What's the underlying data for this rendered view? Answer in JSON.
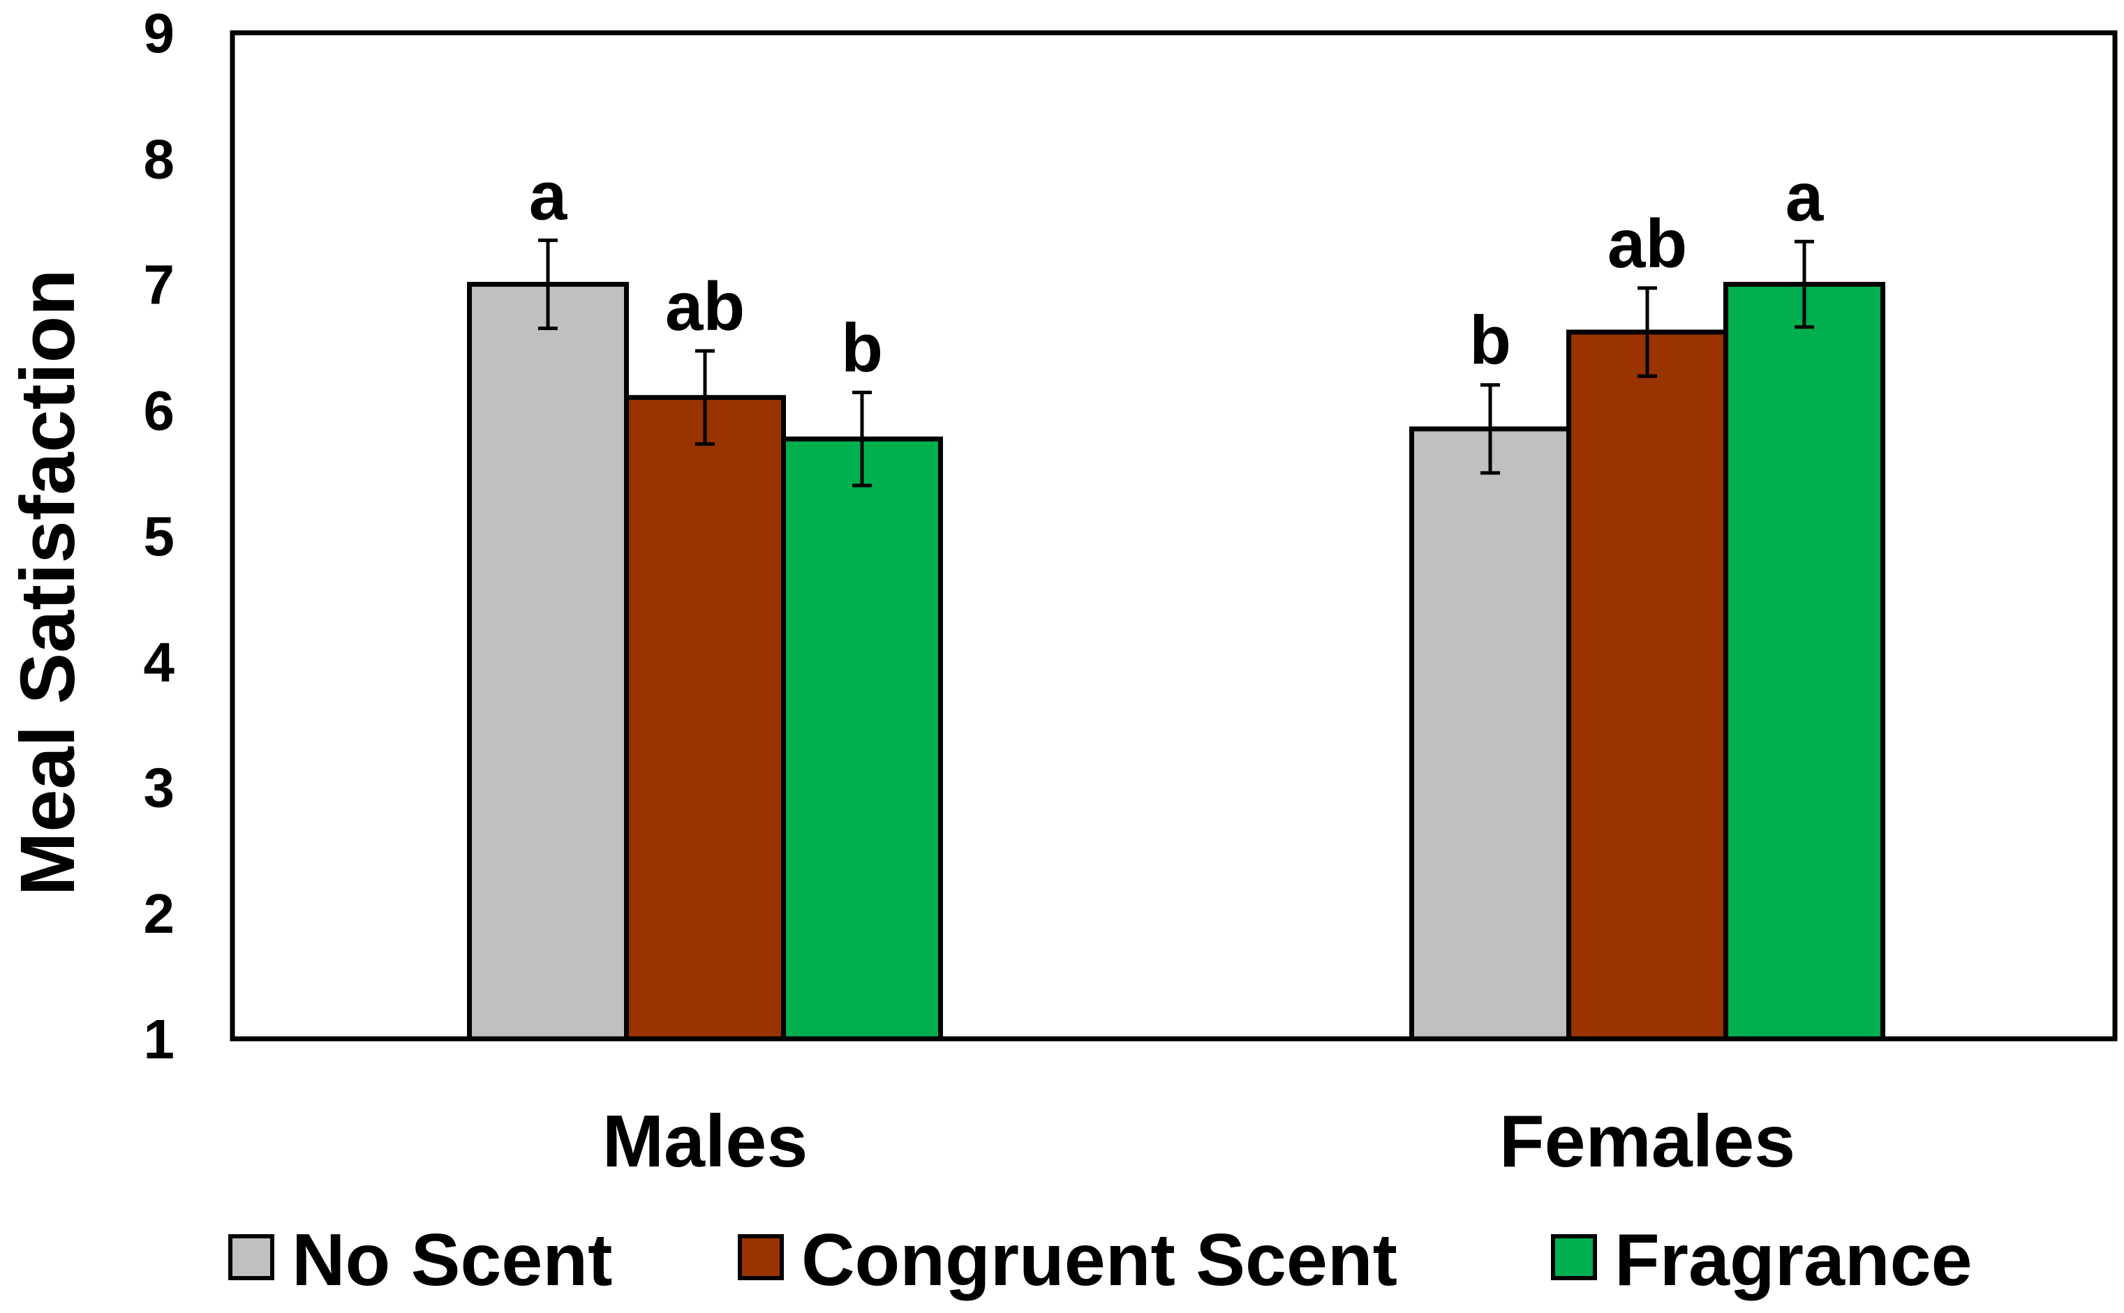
{
  "chart_data": {
    "type": "bar",
    "title": "",
    "ylabel": "Meal Satisfaction",
    "xlabel": "",
    "ylim": [
      1,
      9
    ],
    "yticks": [
      1,
      2,
      3,
      4,
      5,
      6,
      7,
      8,
      9
    ],
    "grid": false,
    "legend_position": "bottom",
    "categories": [
      "Males",
      "Females"
    ],
    "series": [
      {
        "name": "No Scent",
        "color": "#C0C0C0",
        "values": [
          7.0,
          5.85
        ],
        "errors": [
          0.35,
          0.35
        ],
        "labels": [
          "a",
          "b"
        ]
      },
      {
        "name": "Congruent Scent",
        "color": "#993300",
        "values": [
          6.1,
          6.62
        ],
        "errors": [
          0.37,
          0.35
        ],
        "labels": [
          "ab",
          "ab"
        ]
      },
      {
        "name": "Fragrance",
        "color": "#00B04F",
        "values": [
          5.77,
          7.0
        ],
        "errors": [
          0.37,
          0.34
        ],
        "labels": [
          "b",
          "a"
        ]
      }
    ]
  }
}
